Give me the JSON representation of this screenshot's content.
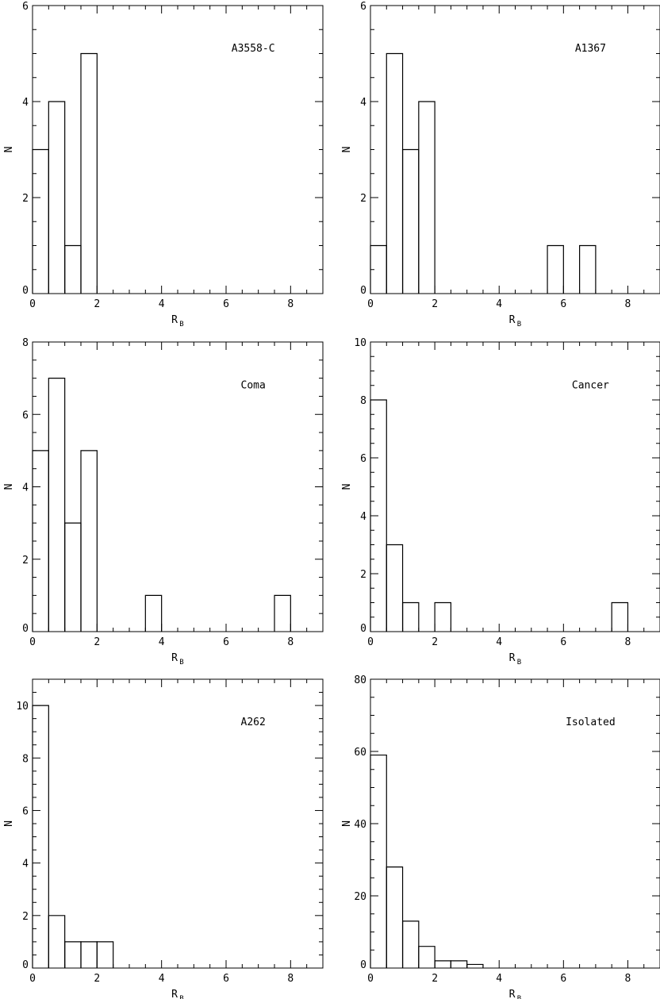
{
  "chart_data": [
    {
      "type": "bar",
      "title": "A3558-C",
      "xlabel": "R",
      "xlabel_sub": "B",
      "ylabel": "N",
      "xlim": [
        0,
        9
      ],
      "ylim": [
        0,
        6
      ],
      "xticks": [
        0,
        2,
        4,
        6,
        8
      ],
      "yticks": [
        0,
        2,
        4,
        6
      ],
      "bin_width": 0.5,
      "bin_edges": [
        0,
        0.5,
        1,
        1.5,
        2
      ],
      "values": [
        3,
        4,
        1,
        5
      ],
      "grid": false,
      "legend": "none"
    },
    {
      "type": "bar",
      "title": "A1367",
      "xlabel": "R",
      "xlabel_sub": "B",
      "ylabel": "N",
      "xlim": [
        0,
        9
      ],
      "ylim": [
        0,
        6
      ],
      "xticks": [
        0,
        2,
        4,
        6,
        8
      ],
      "yticks": [
        0,
        2,
        4,
        6
      ],
      "bin_width": 0.5,
      "bin_edges": [
        0,
        0.5,
        1,
        1.5,
        2,
        2.5,
        3,
        3.5,
        4,
        4.5,
        5,
        5.5,
        6,
        6.5,
        7
      ],
      "values": [
        1,
        5,
        3,
        4,
        0,
        0,
        0,
        0,
        0,
        0,
        0,
        1,
        0,
        1
      ],
      "grid": false,
      "legend": "none"
    },
    {
      "type": "bar",
      "title": "Coma",
      "xlabel": "R",
      "xlabel_sub": "B",
      "ylabel": "N",
      "xlim": [
        0,
        9
      ],
      "ylim": [
        0,
        8
      ],
      "xticks": [
        0,
        2,
        4,
        6,
        8
      ],
      "yticks": [
        0,
        2,
        4,
        6,
        8
      ],
      "bin_width": 0.5,
      "bin_edges": [
        0,
        0.5,
        1,
        1.5,
        2,
        2.5,
        3,
        3.5,
        4,
        4.5,
        5,
        5.5,
        6,
        6.5,
        7,
        7.5,
        8
      ],
      "values": [
        5,
        7,
        3,
        5,
        0,
        0,
        0,
        1,
        0,
        0,
        0,
        0,
        0,
        0,
        0,
        1
      ],
      "grid": false,
      "legend": "none"
    },
    {
      "type": "bar",
      "title": "Cancer",
      "xlabel": "R",
      "xlabel_sub": "B",
      "ylabel": "N",
      "xlim": [
        0,
        9
      ],
      "ylim": [
        0,
        10
      ],
      "xticks": [
        0,
        2,
        4,
        6,
        8
      ],
      "yticks": [
        0,
        2,
        4,
        6,
        8,
        10
      ],
      "bin_width": 0.5,
      "bin_edges": [
        0,
        0.5,
        1,
        1.5,
        2,
        2.5,
        3,
        3.5,
        4,
        4.5,
        5,
        5.5,
        6,
        6.5,
        7,
        7.5,
        8
      ],
      "values": [
        8,
        3,
        1,
        0,
        1,
        0,
        0,
        0,
        0,
        0,
        0,
        0,
        0,
        0,
        0,
        1
      ],
      "grid": false,
      "legend": "none"
    },
    {
      "type": "bar",
      "title": "A262",
      "xlabel": "R",
      "xlabel_sub": "B",
      "ylabel": "N",
      "xlim": [
        0,
        9
      ],
      "ylim": [
        0,
        11
      ],
      "xticks": [
        0,
        2,
        4,
        6,
        8
      ],
      "yticks": [
        0,
        2,
        4,
        6,
        8,
        10
      ],
      "bin_width": 0.5,
      "bin_edges": [
        0,
        0.5,
        1,
        1.5,
        2,
        2.5
      ],
      "values": [
        10,
        2,
        1,
        1,
        1
      ],
      "grid": false,
      "legend": "none"
    },
    {
      "type": "bar",
      "title": "Isolated",
      "xlabel": "R",
      "xlabel_sub": "B",
      "ylabel": "N",
      "xlim": [
        0,
        9
      ],
      "ylim": [
        0,
        80
      ],
      "xticks": [
        0,
        2,
        4,
        6,
        8
      ],
      "yticks": [
        0,
        20,
        40,
        60,
        80
      ],
      "bin_width": 0.5,
      "bin_edges": [
        0,
        0.5,
        1,
        1.5,
        2,
        2.5,
        3,
        3.5
      ],
      "values": [
        59,
        28,
        13,
        6,
        2,
        2,
        1
      ],
      "grid": false,
      "legend": "none"
    }
  ]
}
